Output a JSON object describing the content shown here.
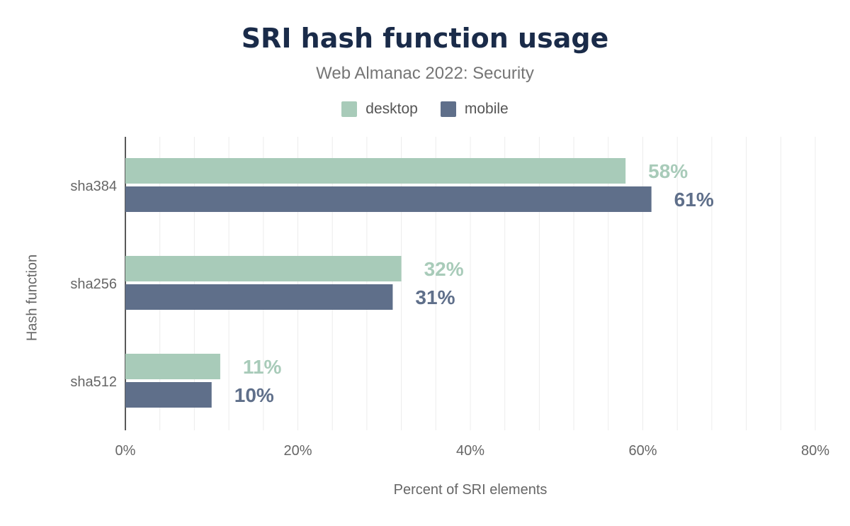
{
  "chart_data": {
    "type": "bar",
    "orientation": "horizontal",
    "title": "SRI hash function usage",
    "subtitle": "Web Almanac 2022: Security",
    "xlabel": "Percent of SRI elements",
    "ylabel": "Hash function",
    "categories": [
      "sha384",
      "sha256",
      "sha512"
    ],
    "series": [
      {
        "name": "desktop",
        "color": "#a8cbb9",
        "values": [
          58,
          32,
          11
        ],
        "labels": [
          "58%",
          "32%",
          "11%"
        ]
      },
      {
        "name": "mobile",
        "color": "#5f6f8a",
        "values": [
          61,
          31,
          10
        ],
        "labels": [
          "61%",
          "31%",
          "10%"
        ]
      }
    ],
    "xlim": [
      0,
      80
    ],
    "xticks": [
      0,
      20,
      40,
      60,
      80
    ],
    "xtick_labels": [
      "0%",
      "20%",
      "40%",
      "60%",
      "80%"
    ],
    "grid": true,
    "legend": "top-center"
  }
}
